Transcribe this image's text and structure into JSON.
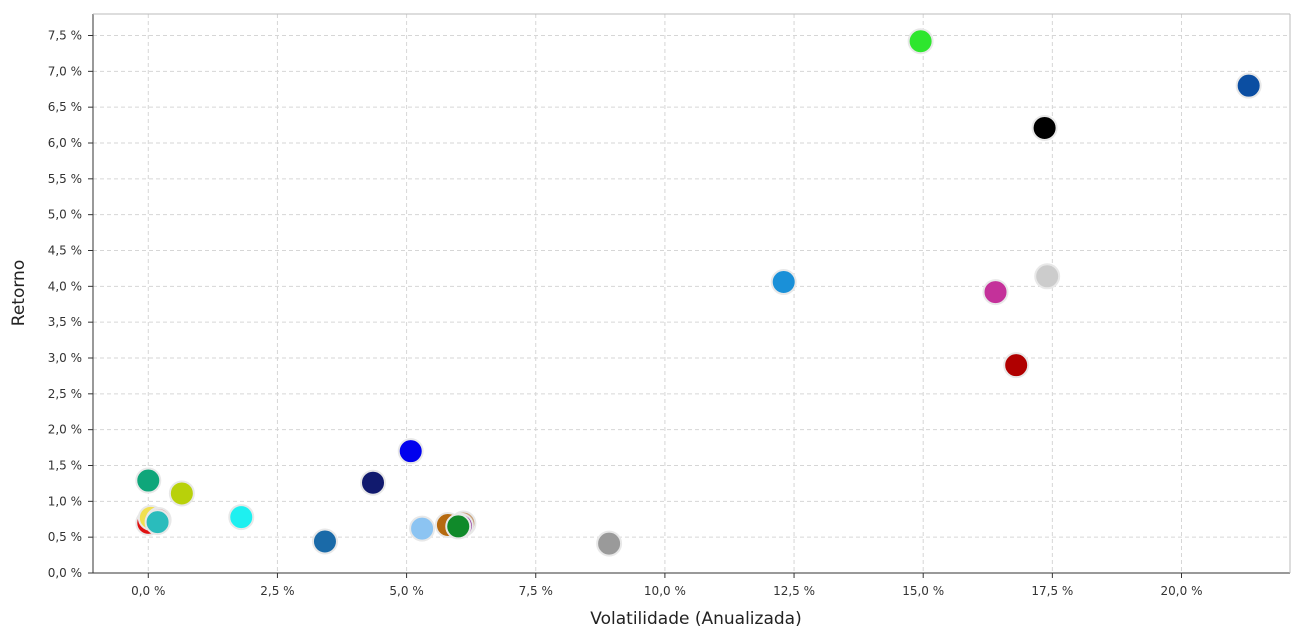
{
  "chart_data": {
    "type": "scatter",
    "xlabel": "Volatilidade (Anualizada)",
    "ylabel": "Retorno",
    "xlim": [
      -1.07,
      22.1
    ],
    "ylim": [
      0.0,
      7.8
    ],
    "x_ticks": [
      0,
      2.5,
      5,
      7.5,
      10,
      12.5,
      15,
      17.5,
      20
    ],
    "x_tick_labels": [
      "0,0 %",
      "2,5 %",
      "5,0 %",
      "7,5 %",
      "10,0 %",
      "12,5 %",
      "15,0 %",
      "17,5 %",
      "20,0 %"
    ],
    "y_ticks": [
      0,
      0.5,
      1,
      1.5,
      2,
      2.5,
      3,
      3.5,
      4,
      4.5,
      5,
      5.5,
      6,
      6.5,
      7,
      7.5
    ],
    "y_tick_labels": [
      "0,0 %",
      "0,5 %",
      "1,0 %",
      "1,5 %",
      "2,0 %",
      "2,5 %",
      "3,0 %",
      "3,5 %",
      "4,0 %",
      "4,5 %",
      "5,0 %",
      "5,5 %",
      "6,0 %",
      "6,5 %",
      "7,0 %",
      "7,5 %"
    ],
    "grid": true,
    "legend": "none",
    "points": [
      {
        "x": 14.95,
        "y": 7.42,
        "color": "#2ee62e"
      },
      {
        "x": 21.3,
        "y": 6.8,
        "color": "#0b4ea2"
      },
      {
        "x": 17.35,
        "y": 6.21,
        "color": "#000000"
      },
      {
        "x": 12.3,
        "y": 4.06,
        "color": "#1a90d8"
      },
      {
        "x": 17.4,
        "y": 4.14,
        "color": "#cccccc"
      },
      {
        "x": 16.4,
        "y": 3.92,
        "color": "#c4319a"
      },
      {
        "x": 16.8,
        "y": 2.9,
        "color": "#b00000"
      },
      {
        "x": 5.08,
        "y": 1.7,
        "color": "#0000ee"
      },
      {
        "x": 4.35,
        "y": 1.26,
        "color": "#111a6e"
      },
      {
        "x": 0.0,
        "y": 1.29,
        "color": "#0fa67a"
      },
      {
        "x": 0.65,
        "y": 1.11,
        "color": "#b8d10a"
      },
      {
        "x": 0.0,
        "y": 0.7,
        "color": "#e01010"
      },
      {
        "x": 0.05,
        "y": 0.77,
        "color": "#f0e050"
      },
      {
        "x": 0.2,
        "y": 0.74,
        "color": "#e0a0a0"
      },
      {
        "x": 0.18,
        "y": 0.71,
        "color": "#2abcbc"
      },
      {
        "x": 1.8,
        "y": 0.78,
        "color": "#1ef0f0"
      },
      {
        "x": 3.42,
        "y": 0.44,
        "color": "#1a6aa8"
      },
      {
        "x": 5.3,
        "y": 0.62,
        "color": "#8cc4f2"
      },
      {
        "x": 5.8,
        "y": 0.67,
        "color": "#b66a10"
      },
      {
        "x": 6.1,
        "y": 0.69,
        "color": "#c9a27a"
      },
      {
        "x": 6.05,
        "y": 0.66,
        "color": "#8a2a9a"
      },
      {
        "x": 6.0,
        "y": 0.65,
        "color": "#108a2a"
      },
      {
        "x": 8.92,
        "y": 0.41,
        "color": "#9a9a9a"
      }
    ]
  }
}
